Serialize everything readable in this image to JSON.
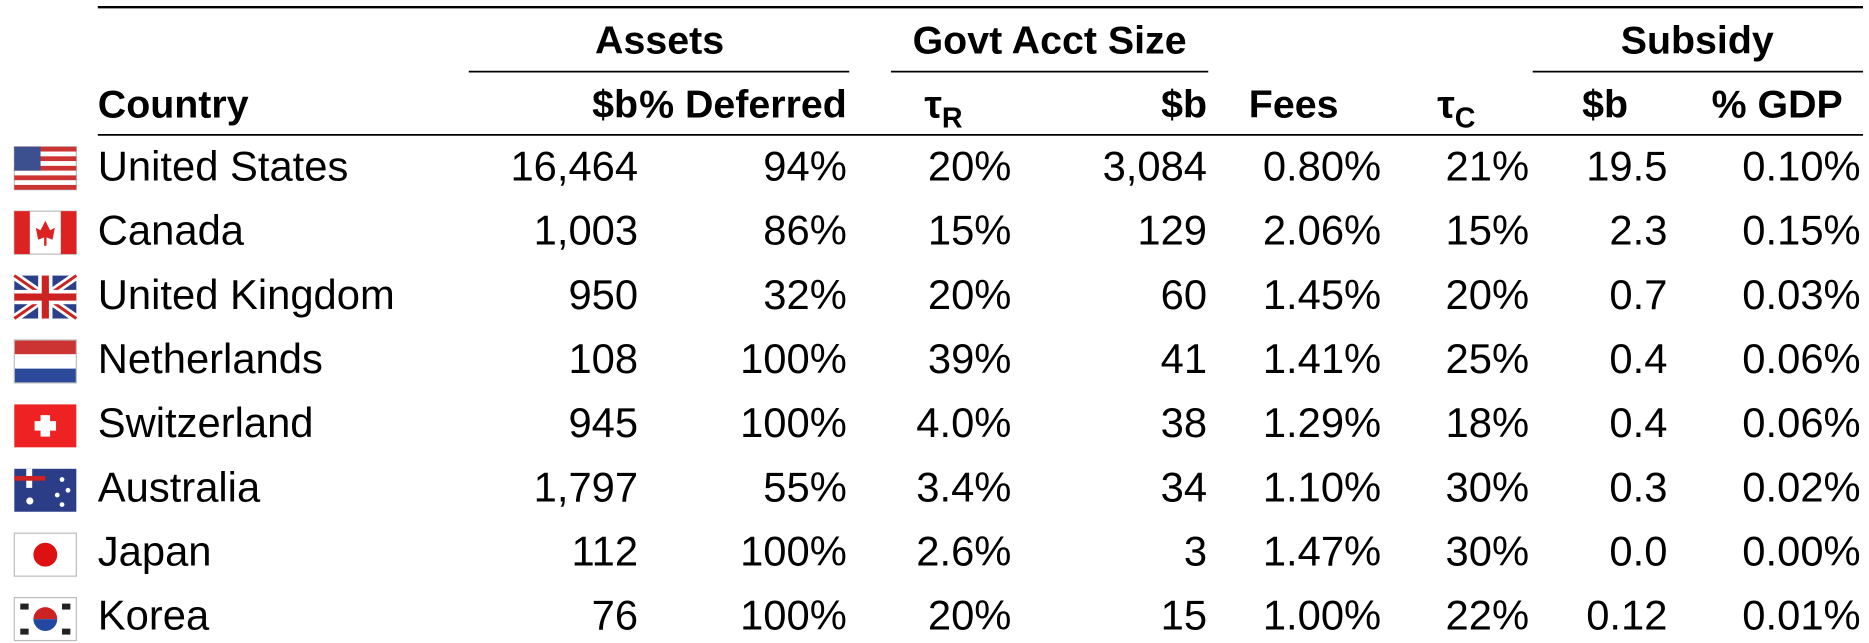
{
  "table": {
    "group_headers": [
      "Assets",
      "Govt Acct Size",
      "Subsidy"
    ],
    "columns": [
      {
        "label": "Country"
      },
      {
        "label": "$b"
      },
      {
        "label": "% Deferred"
      },
      {
        "label": "τ",
        "sub": "R"
      },
      {
        "label": "$b"
      },
      {
        "label": "Fees"
      },
      {
        "label": "τ",
        "sub": "C"
      },
      {
        "label": "$b"
      },
      {
        "label": "% GDP"
      }
    ],
    "rows": [
      [
        "United States",
        "16,464",
        "94%",
        "20%",
        "3,084",
        "0.80%",
        "21%",
        "19.5",
        "0.10%"
      ],
      [
        "Canada",
        "1,003",
        "86%",
        "15%",
        "129",
        "2.06%",
        "15%",
        "2.3",
        "0.15%"
      ],
      [
        "United Kingdom",
        "950",
        "32%",
        "20%",
        "60",
        "1.45%",
        "20%",
        "0.7",
        "0.03%"
      ],
      [
        "Netherlands",
        "108",
        "100%",
        "39%",
        "41",
        "1.41%",
        "25%",
        "0.4",
        "0.06%"
      ],
      [
        "Switzerland",
        "945",
        "100%",
        "4.0%",
        "38",
        "1.29%",
        "18%",
        "0.4",
        "0.06%"
      ],
      [
        "Australia",
        "1,797",
        "55%",
        "3.4%",
        "34",
        "1.10%",
        "30%",
        "0.3",
        "0.02%"
      ],
      [
        "Japan",
        "112",
        "100%",
        "2.6%",
        "3",
        "1.47%",
        "30%",
        "0.0",
        "0.00%"
      ],
      [
        "Korea",
        "76",
        "100%",
        "20%",
        "15",
        "1.00%",
        "22%",
        "0.12",
        "0.01%"
      ]
    ]
  }
}
